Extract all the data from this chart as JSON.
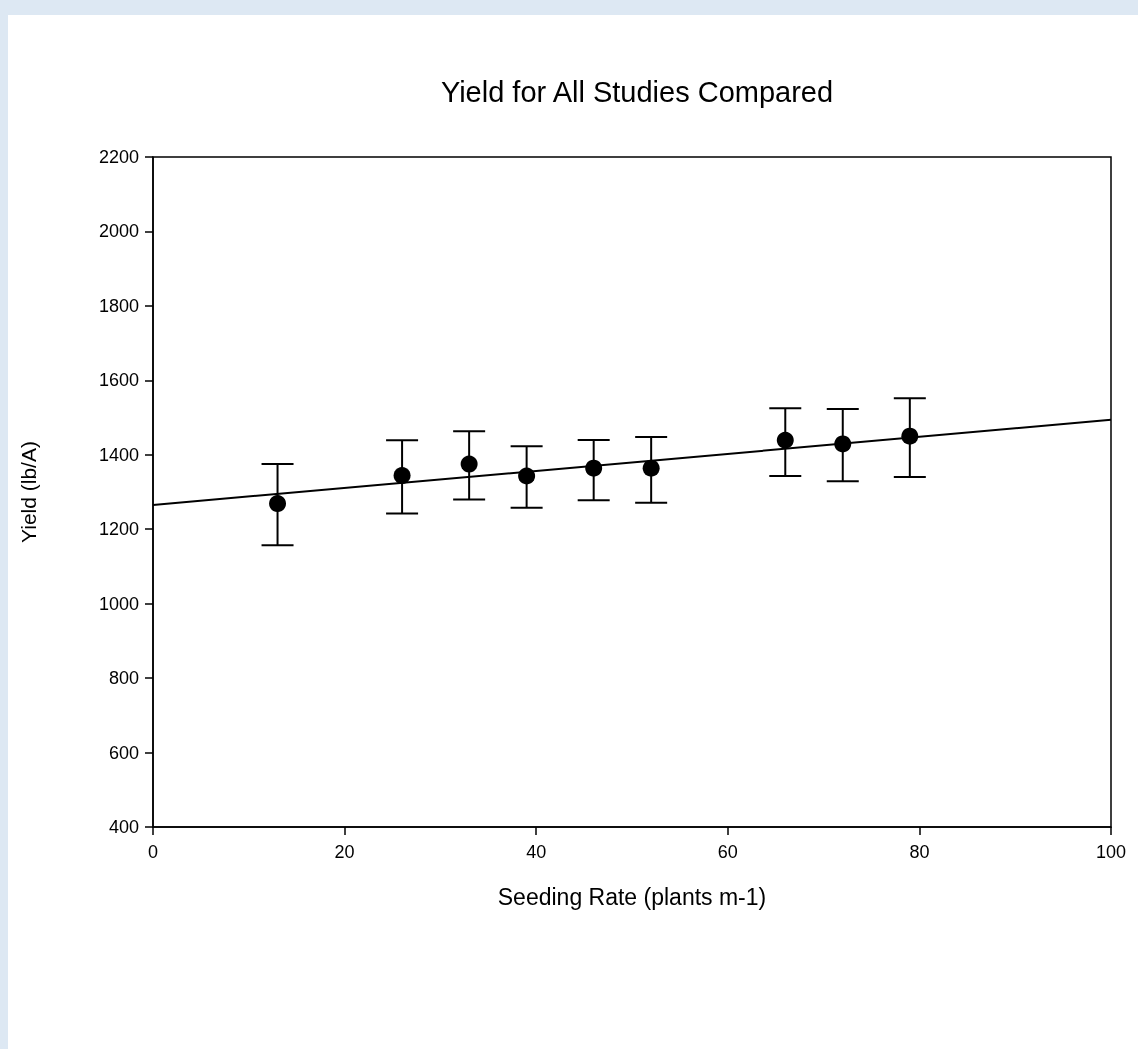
{
  "chart_data": {
    "type": "scatter",
    "title": "Yield for All Studies Compared",
    "xlabel": "Seeding Rate (plants m-1)",
    "ylabel": "Yield (lb/A)",
    "xlim": [
      0,
      100
    ],
    "xticks": [
      0,
      20,
      40,
      60,
      80,
      100
    ],
    "ylim": [
      400,
      2200
    ],
    "yticks": [
      400,
      600,
      800,
      1000,
      1200,
      1400,
      1600,
      1800,
      2000,
      2200
    ],
    "grid": false,
    "marker": "circle",
    "series": [
      {
        "type": "scatter",
        "color": "#000000",
        "x": [
          13,
          26,
          33,
          39,
          46,
          52,
          66,
          72,
          79
        ],
        "values": [
          1269,
          1344,
          1375,
          1343,
          1364,
          1364,
          1439,
          1429,
          1450
        ],
        "errors": [
          [
            1157,
            1375
          ],
          [
            1242,
            1439
          ],
          [
            1280,
            1463
          ],
          [
            1258,
            1423
          ],
          [
            1278,
            1440
          ],
          [
            1271,
            1448
          ],
          [
            1343,
            1525
          ],
          [
            1329,
            1523
          ],
          [
            1340,
            1552
          ]
        ]
      },
      {
        "type": "line",
        "color": "#000000",
        "x": [
          0,
          100
        ],
        "values": [
          1265,
          1494
        ],
        "marker": "none",
        "line_style": "solid"
      }
    ]
  }
}
